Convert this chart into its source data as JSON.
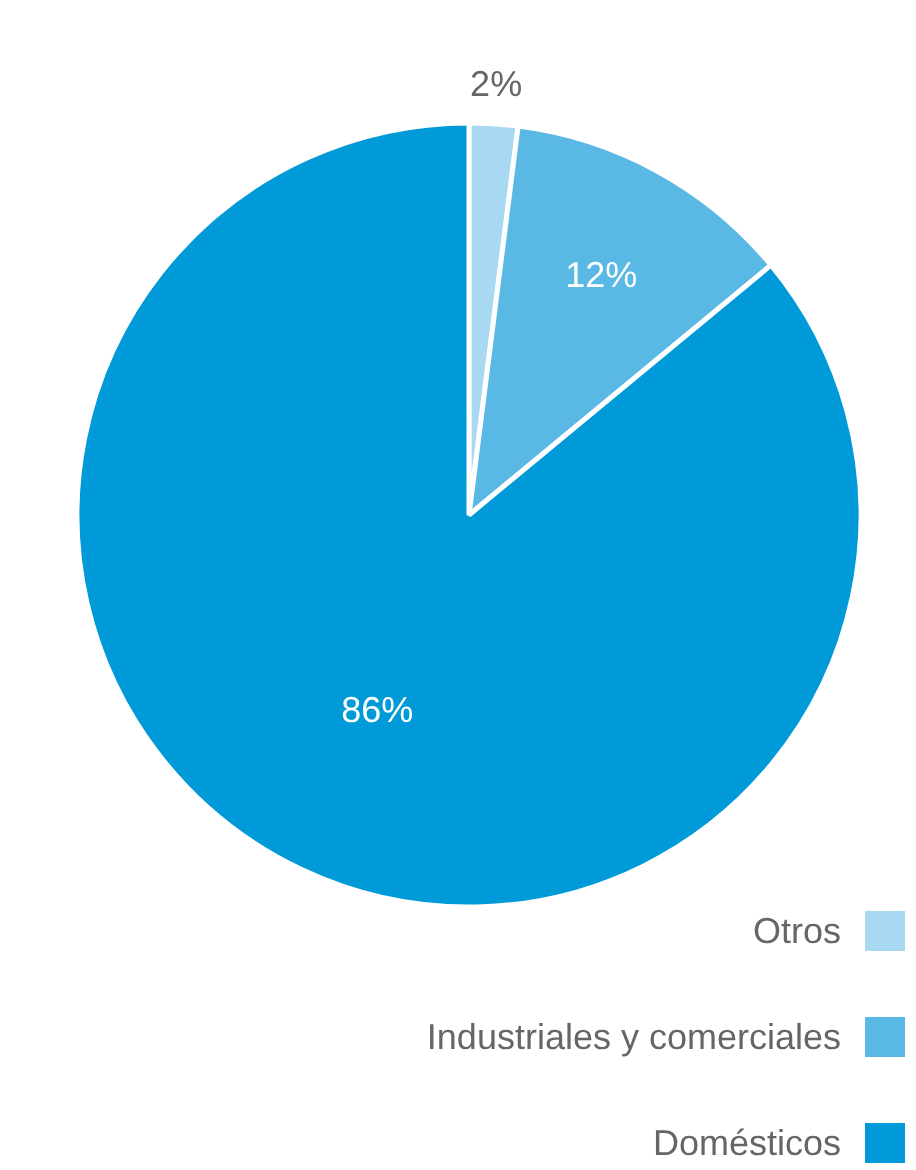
{
  "chart_data": {
    "type": "pie",
    "categories": [
      "Otros",
      "Industriales y comerciales",
      "Domésticos"
    ],
    "values": [
      2,
      12,
      86
    ],
    "colors": [
      "#a9d9f2",
      "#5ab8e5",
      "#009ad8"
    ],
    "value_labels": [
      "2%",
      "12%",
      "86%"
    ],
    "legend": "bottom right"
  }
}
